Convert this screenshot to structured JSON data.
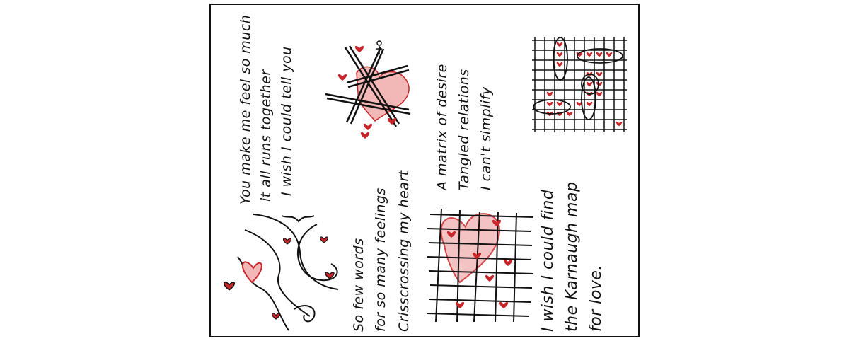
{
  "poem": {
    "stanza1": {
      "line1": "You make me feel so much",
      "line2": "it all runs together",
      "line3": "I wish I could tell you"
    },
    "stanza2": {
      "line1": "So few words",
      "line2": "for so many feelings",
      "line3": "Crisscrossing my heart"
    },
    "stanza3": {
      "line1": "A matrix of desire",
      "line2": "Tangled relations",
      "line3": "I can't simplify"
    },
    "stanza4": {
      "line1": "I wish I could find",
      "line2": "the Karnaugh map",
      "line3": "for love."
    }
  },
  "colors": {
    "ink": "#111111",
    "heart": "#c8262a",
    "heart_fill": "#f2b8b8"
  }
}
